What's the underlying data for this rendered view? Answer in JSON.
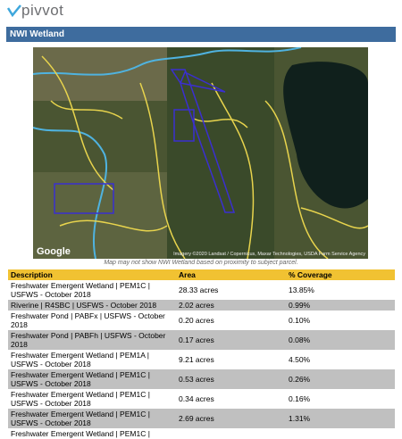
{
  "header": {
    "logo": "pivvot",
    "title": "NWI Wetland"
  },
  "map": {
    "attribution_brand": "Google",
    "attribution": "Imagery ©2020 Landsat / Copernicus, Maxar Technologies, USDA Farm Service Agency",
    "caption": "Map may not show NWI Wetland based on proximity to subject parcel."
  },
  "table": {
    "columns": [
      "Description",
      "Area",
      "% Coverage"
    ],
    "rows": [
      [
        "Freshwater Emergent Wetland | PEM1C | USFWS - October 2018",
        "28.33 acres",
        "13.85%"
      ],
      [
        "Riverine | R4SBC | USFWS - October 2018",
        "2.02 acres",
        "0.99%"
      ],
      [
        "Freshwater Pond | PABFx | USFWS - October 2018",
        "0.20 acres",
        "0.10%"
      ],
      [
        "Freshwater Pond | PABFh | USFWS - October 2018",
        "0.17 acres",
        "0.08%"
      ],
      [
        "Freshwater Emergent Wetland | PEM1A | USFWS - October 2018",
        "9.21 acres",
        "4.50%"
      ],
      [
        "Freshwater Emergent Wetland | PEM1C | USFWS - October 2018",
        "0.53 acres",
        "0.26%"
      ],
      [
        "Freshwater Emergent Wetland | PEM1C | USFWS - October 2018",
        "0.34 acres",
        "0.16%"
      ],
      [
        "Freshwater Emergent Wetland | PEM1C | USFWS - October 2018",
        "2.69 acres",
        "1.31%"
      ],
      [
        "Freshwater Emergent Wetland | PEM1C |",
        "",
        ""
      ]
    ]
  }
}
